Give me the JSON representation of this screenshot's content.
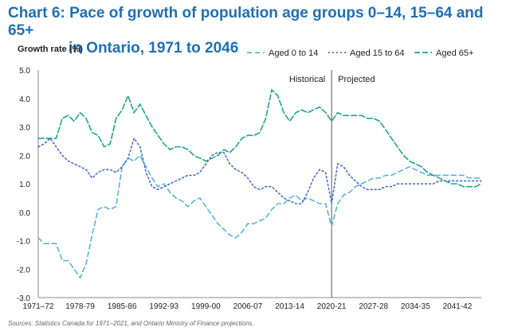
{
  "title_line1": "Chart 6: Pace of growth of population age groups 0–14, 15–64 and 65+",
  "title_line2": "in Ontario, 1971 to 2046",
  "source": "Sources: Statistics Canada for 1971–2021, and Ontario Ministry of Finance projections.",
  "chart_data": {
    "type": "line",
    "ylabel": "Growth rate (%)",
    "ylim": [
      -3.0,
      5.0
    ],
    "yticks": [
      "5.0",
      "4.0",
      "3.0",
      "2.0",
      "1.0",
      "0.0",
      "-1.0",
      "-2.0",
      "-3.0"
    ],
    "xtick_labels": [
      "1971–72",
      "1978-79",
      "1985-86",
      "1992-93",
      "1999-00",
      "2006-07",
      "2013-14",
      "2020-21",
      "2027-28",
      "2034-35",
      "2041-42"
    ],
    "x_start_year": 1971,
    "x_end_year": 2045,
    "divider_year": 2020,
    "annotations": {
      "historical": "Historical",
      "projected": "Projected"
    },
    "legend_position": "top-right",
    "grid": false,
    "series": [
      {
        "name": "Aged 0 to 14",
        "color": "#5ab4e0",
        "dash": "6,4",
        "values": [
          -0.9,
          -1.1,
          -1.1,
          -1.1,
          -1.7,
          -1.7,
          -2.0,
          -2.3,
          -1.8,
          -0.8,
          0.1,
          0.2,
          0.1,
          0.2,
          1.6,
          1.9,
          1.8,
          2.0,
          1.6,
          1.2,
          0.9,
          1.0,
          0.7,
          0.5,
          0.4,
          0.2,
          0.4,
          0.5,
          0.2,
          -0.1,
          -0.4,
          -0.6,
          -0.8,
          -0.9,
          -0.7,
          -0.4,
          -0.4,
          -0.3,
          -0.2,
          0.1,
          0.3,
          0.3,
          0.5,
          0.6,
          0.4,
          0.5,
          0.4,
          0.3,
          0.3,
          -0.5,
          0.3,
          0.6,
          0.7,
          0.9,
          1.0,
          1.1,
          1.2,
          1.2,
          1.3,
          1.3,
          1.4,
          1.5,
          1.6,
          1.5,
          1.4,
          1.3,
          1.3,
          1.3,
          1.3,
          1.3,
          1.3,
          1.3,
          1.2,
          1.2,
          1.2
        ]
      },
      {
        "name": "Aged 15 to 64",
        "color": "#4a6fd0",
        "dash": "2,3",
        "values": [
          2.3,
          2.4,
          2.6,
          2.3,
          2.0,
          1.8,
          1.7,
          1.6,
          1.5,
          1.2,
          1.4,
          1.5,
          1.5,
          1.4,
          1.6,
          1.9,
          2.6,
          2.3,
          1.4,
          0.9,
          0.8,
          0.9,
          1.0,
          1.1,
          1.2,
          1.3,
          1.3,
          1.4,
          1.7,
          2.0,
          2.1,
          2.1,
          1.7,
          1.5,
          1.4,
          1.2,
          0.9,
          0.8,
          0.9,
          0.9,
          0.7,
          0.5,
          0.4,
          0.3,
          0.3,
          0.7,
          1.2,
          1.5,
          1.4,
          0.3,
          1.7,
          1.6,
          1.3,
          1.1,
          0.9,
          0.8,
          0.8,
          0.8,
          0.9,
          0.9,
          1.0,
          1.0,
          1.0,
          1.0,
          1.0,
          1.0,
          1.0,
          1.1,
          1.1,
          1.1,
          1.1,
          1.1,
          1.1,
          1.1,
          1.1
        ]
      },
      {
        "name": "Aged 65+",
        "color": "#1fa58f",
        "dash": "7,3",
        "values": [
          2.6,
          2.6,
          2.6,
          2.6,
          3.3,
          3.4,
          3.2,
          3.5,
          3.3,
          2.8,
          2.7,
          2.3,
          2.4,
          3.3,
          3.6,
          4.1,
          3.5,
          3.8,
          3.4,
          3.0,
          2.7,
          2.4,
          2.2,
          2.3,
          2.3,
          2.2,
          2.0,
          1.9,
          1.8,
          1.9,
          2.0,
          2.2,
          2.1,
          2.3,
          2.6,
          2.7,
          2.7,
          2.8,
          3.3,
          4.3,
          4.1,
          3.5,
          3.2,
          3.5,
          3.6,
          3.5,
          3.6,
          3.7,
          3.5,
          3.2,
          3.5,
          3.4,
          3.4,
          3.4,
          3.4,
          3.3,
          3.3,
          3.2,
          2.9,
          2.6,
          2.3,
          2.0,
          1.8,
          1.7,
          1.6,
          1.4,
          1.3,
          1.2,
          1.1,
          1.0,
          1.0,
          0.9,
          0.9,
          0.9,
          1.0
        ]
      }
    ]
  }
}
